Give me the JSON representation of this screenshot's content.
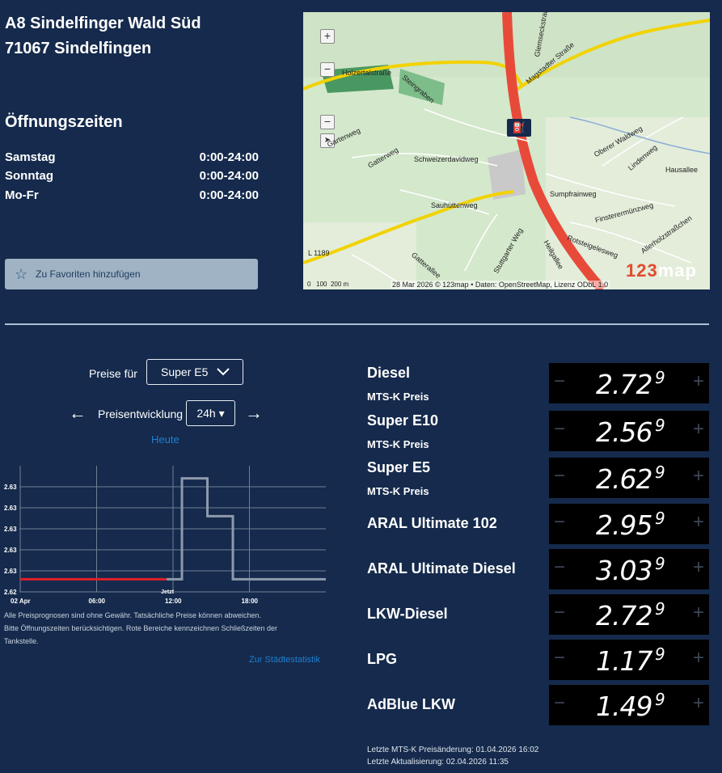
{
  "station": {
    "name": "A8 Sindelfinger Wald Süd",
    "city": "71067 Sindelfingen"
  },
  "hours": {
    "title": "Öffnungszeiten",
    "rows": [
      {
        "day": "Samstag",
        "time": "0:00-24:00"
      },
      {
        "day": "Sonntag",
        "time": "0:00-24:00"
      },
      {
        "day": "Mo-Fr",
        "time": "0:00-24:00"
      }
    ]
  },
  "favorites": {
    "label": "Zu Favoriten hinzufügen",
    "icon": "star-outline-icon"
  },
  "map": {
    "zoom_in": "+",
    "zoom_out": "−",
    "zoom_out2": "−",
    "locate": "➤",
    "attribution": "28 Mar 2026 © 123map • Daten: OpenStreetMap, Lizenz ODbL 1.0",
    "logo_num": "123",
    "logo_word": "map",
    "scale_labels": [
      "0",
      "100",
      "200 m"
    ],
    "road_labels": [
      "Holzertalstraße",
      "Steingraben",
      "Gartenweg",
      "Gatterweg",
      "Schweizerdavidweg",
      "Sauhüttenweg",
      "Stuttgarter Weg",
      "Gatterallee",
      "L 1189",
      "Glemseckstraße",
      "Magstadter Straße",
      "Sumpfrainweg",
      "Oberer Waldweg",
      "Lindenweg",
      "Hausallee",
      "Finsterermünzweg",
      "Rotsteigelesweg",
      "Allerholzstraßchen",
      "Heilgallee"
    ]
  },
  "controls": {
    "prices_for_label": "Preise für",
    "fuel_selected": "Super E5",
    "trend_label": "Preisentwicklung",
    "range_selected": "24h ▾",
    "prev_arrow": "←",
    "next_arrow": "→",
    "today_link": "Heute"
  },
  "chart_data": {
    "type": "line",
    "title": "",
    "ytick_labels": [
      "2.63",
      "2.63",
      "2.63",
      "2.63",
      "2.63",
      "2.62"
    ],
    "xtick_labels": [
      "02 Apr",
      "06:00",
      "12:00",
      "18:00"
    ],
    "now_label": "Jetzt",
    "x_hours": [
      0,
      11.5,
      12.7,
      14.7,
      16.7,
      24
    ],
    "series": [
      {
        "name": "",
        "x": [
          0,
          11.5
        ],
        "y": [
          2.621,
          2.621
        ],
        "color": "#e0202a"
      },
      {
        "name": "",
        "x": [
          11.5,
          12.7,
          12.7,
          14.7,
          14.7,
          16.7,
          16.7,
          24
        ],
        "y": [
          2.621,
          2.621,
          2.637,
          2.637,
          2.631,
          2.631,
          2.621,
          2.621
        ],
        "color": "#8e9aab"
      }
    ],
    "xlim": [
      0,
      24
    ],
    "ylim": [
      2.619,
      2.639
    ]
  },
  "notes": {
    "line1": "Alle Preisprognosen sind ohne Gewähr. Tatsächliche Preise können abweichen.",
    "line2": "Bitte Öffnungszeiten berücksichtigen. Rote Bereiche kennzeichnen Schließzeiten der",
    "line3": "Tankstelle.",
    "stats_link": "Zur Städtestatistik"
  },
  "prices": [
    {
      "name": "Diesel",
      "sub": "MTS-K Preis",
      "main": "2.72",
      "last": "9"
    },
    {
      "name": "Super E10",
      "sub": "MTS-K Preis",
      "main": "2.56",
      "last": "9"
    },
    {
      "name": "Super E5",
      "sub": "MTS-K Preis",
      "main": "2.62",
      "last": "9"
    },
    {
      "name": "ARAL Ultimate 102",
      "sub": "",
      "main": "2.95",
      "last": "9"
    },
    {
      "name": "ARAL Ultimate Diesel",
      "sub": "",
      "main": "3.03",
      "last": "9"
    },
    {
      "name": "LKW-Diesel",
      "sub": "",
      "main": "2.72",
      "last": "9"
    },
    {
      "name": "LPG",
      "sub": "",
      "main": "1.17",
      "last": "9"
    },
    {
      "name": "AdBlue LKW",
      "sub": "",
      "main": "1.49",
      "last": "9"
    }
  ],
  "price_controls": {
    "minus": "−",
    "plus": "+"
  },
  "footer": {
    "mtsk_change": "Letzte MTS-K Preisänderung: 01.04.2026 16:02",
    "last_update": "Letzte Aktualisierung: 02.04.2026 11:35"
  },
  "colors": {
    "background": "#152a4c",
    "link": "#1e7fd2",
    "closed": "#e0202a",
    "price_bg": "#000000"
  }
}
